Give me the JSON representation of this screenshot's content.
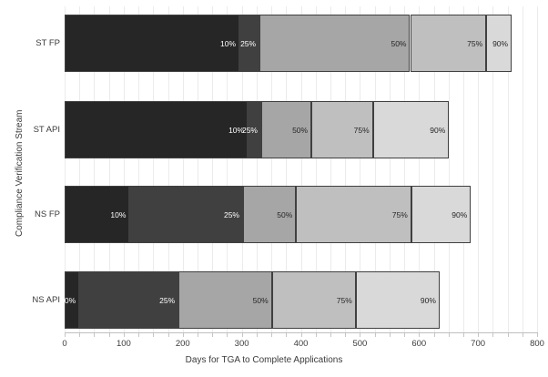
{
  "chart_data": {
    "type": "bar",
    "variant": "horizontal-stacked-percentile",
    "title": "",
    "xlabel": "Days for TGA to Complete Applications",
    "ylabel": "Compliance Verification Stream",
    "xlim": [
      0,
      800
    ],
    "x_major_tick_interval": 100,
    "x_minor_tick_interval": 25,
    "x_tick_labels": [
      "0",
      "100",
      "200",
      "300",
      "400",
      "500",
      "600",
      "700",
      "800"
    ],
    "grid": "vertical-minor-gridlines",
    "legend": "none",
    "percentile_labels": [
      "10%",
      "25%",
      "50%",
      "75%",
      "90%"
    ],
    "segment_colors": [
      "#262626",
      "#404040",
      "#a6a6a6",
      "#bfbfbf",
      "#d9d9d9"
    ],
    "segment_label_colors": [
      "#ffffff",
      "#ffffff",
      "#262626",
      "#262626",
      "#262626"
    ],
    "categories": [
      "ST FP",
      "ST API",
      "NS FP",
      "NS API"
    ],
    "rows": [
      {
        "category": "ST FP",
        "cumulative_days": {
          "10%": 296,
          "25%": 330,
          "50%": 585,
          "75%": 714,
          "90%": 757
        }
      },
      {
        "category": "ST API",
        "cumulative_days": {
          "10%": 310,
          "25%": 333,
          "50%": 418,
          "75%": 522,
          "90%": 651
        }
      },
      {
        "category": "NS FP",
        "cumulative_days": {
          "10%": 110,
          "25%": 302,
          "50%": 392,
          "75%": 587,
          "90%": 688
        }
      },
      {
        "category": "NS API",
        "cumulative_days": {
          "10%": 25,
          "25%": 193,
          "50%": 351,
          "75%": 493,
          "90%": 635
        }
      }
    ]
  },
  "colors": {
    "axis_line": "#bfbfbf",
    "gridline": "#ebebeb",
    "tick_label": "#3b3b3b",
    "axis_title": "#3b3b3b",
    "segment_border": "#404040",
    "background": "#ffffff"
  }
}
